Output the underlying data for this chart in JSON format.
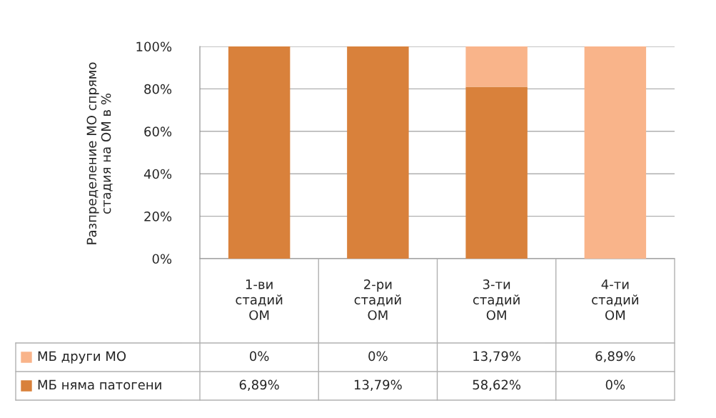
{
  "chart_data": {
    "type": "bar",
    "stacked": true,
    "ylabel": "Разпределение МО спрямо стадия на ОМ в %",
    "categories": [
      "1-ви стадий ОМ",
      "2-ри стадий ОМ",
      "3-ти стадий ОМ",
      "4-ти стадий ОМ"
    ],
    "series": [
      {
        "name": "МБ няма патогени",
        "color": "#d9813b",
        "values": [
          100,
          100,
          81,
          0
        ]
      },
      {
        "name": "МБ други МО",
        "color": "#f9b48a",
        "values": [
          0,
          0,
          19,
          100
        ]
      }
    ],
    "annotations": [
      "0%",
      "0%",
      "13,79%",
      "6,89%",
      "6,89%",
      "13,79%",
      "58,62%",
      "0%"
    ],
    "ylim": [
      0,
      100
    ],
    "yticks": [
      {
        "value": 0,
        "label": "0%"
      },
      {
        "value": 20,
        "label": "20%"
      },
      {
        "value": 40,
        "label": "40%"
      },
      {
        "value": 60,
        "label": "60%"
      },
      {
        "value": 80,
        "label": "80%"
      },
      {
        "value": 100,
        "label": "100%"
      }
    ],
    "grid": "y",
    "legend": "bottom"
  }
}
